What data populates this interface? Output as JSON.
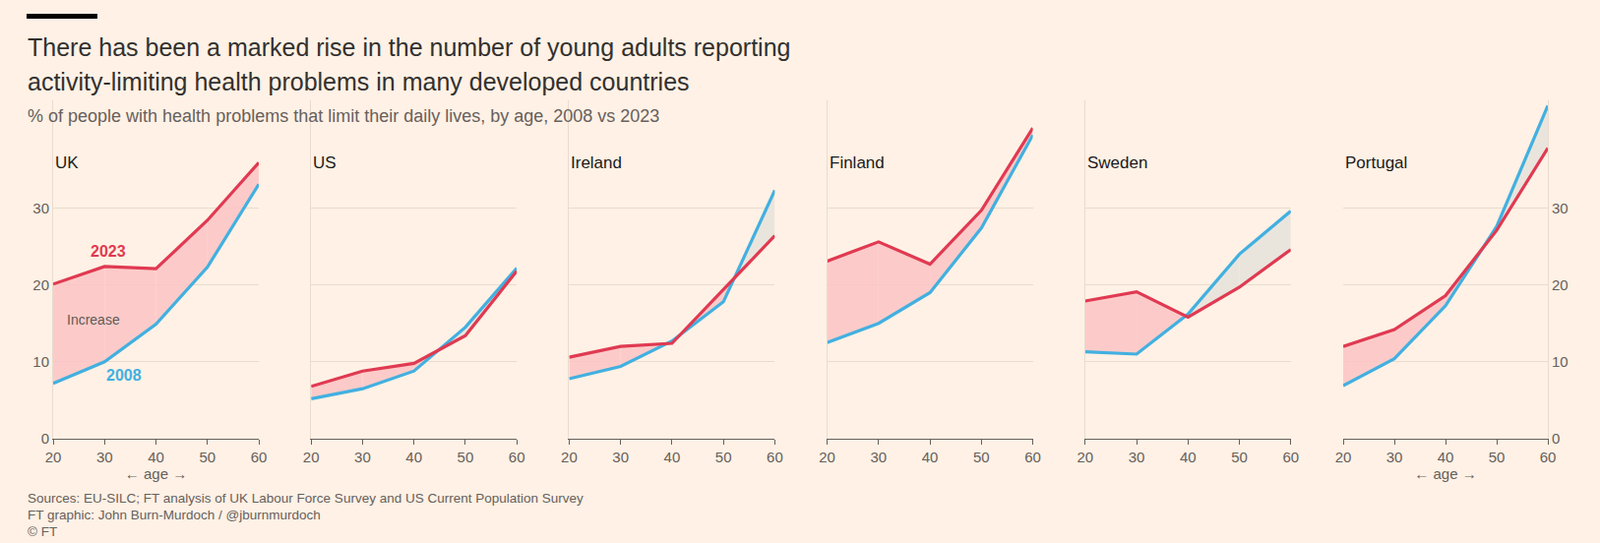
{
  "title": "There has been a marked rise in the number of young adults reporting\nactivity-limiting health problems in many developed countries",
  "subtitle": "% of people with health problems that limit their daily lives, by age, 2008 vs 2023",
  "notes": [
    "Sources: EU-SILC; FT analysis of UK Labour Force Survey and US Current Population Survey",
    "FT graphic: John Burn-Murdoch / @jburnmurdoch",
    "© FT"
  ],
  "chart_data": [
    {
      "type": "line",
      "title": "UK",
      "x_label": "← age →",
      "x": [
        20,
        30,
        40,
        50,
        60
      ],
      "xlim": [
        20,
        60
      ],
      "xticks": [
        20,
        30,
        40,
        50,
        60
      ],
      "ylim": [
        0,
        44
      ],
      "yticks": [
        0,
        10,
        20,
        30
      ],
      "grid": true,
      "series": [
        {
          "name": "2023",
          "color": "#e03a52",
          "values": [
            20.1,
            22.4,
            22.1,
            28.4,
            35.9
          ]
        },
        {
          "name": "2008",
          "color": "#42b0e0",
          "values": [
            7.2,
            10.0,
            14.9,
            22.3,
            33.1
          ]
        }
      ],
      "annotations": [
        {
          "text": "2023",
          "x": 30.7,
          "y": 24.4
        },
        {
          "text": "2008",
          "x": 33.7,
          "y": 8.2
        },
        {
          "text": "Increase",
          "x": 27.9,
          "y": 15.5
        }
      ]
    },
    {
      "type": "line",
      "title": "US",
      "x": [
        20,
        30,
        40,
        50,
        60
      ],
      "xlim": [
        20,
        60
      ],
      "xticks": [
        20,
        30,
        40,
        50,
        60
      ],
      "ylim": [
        0,
        44
      ],
      "yticks": [
        0,
        10,
        20,
        30
      ],
      "grid": true,
      "tick_labels": "x",
      "series": [
        {
          "name": "2023",
          "color": "#e03a52",
          "values": [
            6.8,
            8.8,
            9.8,
            13.4,
            21.8
          ]
        },
        {
          "name": "2008",
          "color": "#42b0e0",
          "values": [
            5.2,
            6.5,
            8.8,
            14.5,
            22.2
          ]
        }
      ]
    },
    {
      "type": "line",
      "title": "Ireland",
      "x": [
        20,
        30,
        40,
        50,
        60
      ],
      "xlim": [
        20,
        60
      ],
      "xticks": [
        20,
        30,
        40,
        50,
        60
      ],
      "ylim": [
        0,
        44
      ],
      "yticks": [
        0,
        10,
        20,
        30
      ],
      "grid": true,
      "tick_labels": "x",
      "series": [
        {
          "name": "2023",
          "color": "#e03a52",
          "values": [
            10.6,
            12.0,
            12.4,
            19.4,
            26.4
          ]
        },
        {
          "name": "2008",
          "color": "#42b0e0",
          "values": [
            7.8,
            9.4,
            12.7,
            17.8,
            32.3
          ]
        }
      ]
    },
    {
      "type": "line",
      "title": "Finland",
      "x": [
        20,
        30,
        40,
        50,
        60
      ],
      "xlim": [
        20,
        60
      ],
      "xticks": [
        20,
        30,
        40,
        50,
        60
      ],
      "ylim": [
        0,
        44
      ],
      "yticks": [
        0,
        10,
        20,
        30
      ],
      "grid": true,
      "tick_labels": "x",
      "series": [
        {
          "name": "2023",
          "color": "#e03a52",
          "values": [
            23.1,
            25.6,
            22.7,
            29.7,
            40.4
          ]
        },
        {
          "name": "2008",
          "color": "#42b0e0",
          "values": [
            12.5,
            15.0,
            19.0,
            27.4,
            39.5
          ]
        }
      ]
    },
    {
      "type": "line",
      "title": "Sweden",
      "x": [
        20,
        30,
        40,
        50,
        60
      ],
      "xlim": [
        20,
        60
      ],
      "xticks": [
        20,
        30,
        40,
        50,
        60
      ],
      "ylim": [
        0,
        44
      ],
      "yticks": [
        0,
        10,
        20,
        30
      ],
      "grid": true,
      "tick_labels": "x",
      "series": [
        {
          "name": "2023",
          "color": "#e03a52",
          "values": [
            17.9,
            19.1,
            15.8,
            19.7,
            24.6
          ]
        },
        {
          "name": "2008",
          "color": "#42b0e0",
          "values": [
            11.3,
            11.0,
            16.2,
            24.0,
            29.6
          ]
        }
      ]
    },
    {
      "type": "line",
      "title": "Portugal",
      "x_label": "← age →",
      "x": [
        20,
        30,
        40,
        50,
        60
      ],
      "xlim": [
        20,
        60
      ],
      "xticks": [
        20,
        30,
        40,
        50,
        60
      ],
      "ylim": [
        0,
        44
      ],
      "yticks": [
        0,
        10,
        20,
        30
      ],
      "grid": true,
      "series": [
        {
          "name": "2023",
          "color": "#e03a52",
          "values": [
            12.0,
            14.2,
            18.6,
            27.1,
            37.8
          ]
        },
        {
          "name": "2008",
          "color": "#42b0e0",
          "values": [
            6.9,
            10.4,
            17.3,
            27.6,
            43.3
          ]
        }
      ]
    }
  ]
}
